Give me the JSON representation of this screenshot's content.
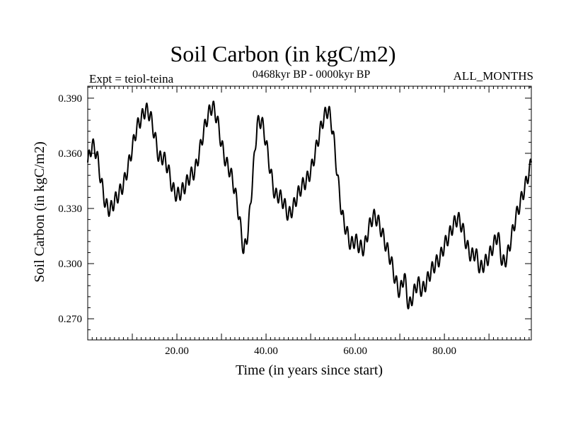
{
  "chart_data": {
    "type": "line",
    "title": "Soil Carbon (in kgC/m2)",
    "expt_label": "Expt = teiol-teina",
    "period_label": "0468kyr BP - 0000kyr BP",
    "months_label": "ALL_MONTHS",
    "xlabel": "Time (in years since start)",
    "ylabel": "Soil Carbon (in kgC/m2)",
    "xlim": [
      0,
      99.5
    ],
    "ylim": [
      0.2585,
      0.3965
    ],
    "xticks": [
      20,
      40,
      60,
      80
    ],
    "xtick_labels": [
      "20.00",
      "40.00",
      "60.00",
      "80.00"
    ],
    "yticks": [
      0.27,
      0.3,
      0.33,
      0.36,
      0.39
    ],
    "ytick_labels": [
      "0.270",
      "0.300",
      "0.330",
      "0.360",
      "0.390"
    ],
    "series": [
      {
        "name": "Soil Carbon",
        "color": "#000000",
        "seasonal_amplitude": 0.004,
        "x": [
          0,
          1,
          2,
          3,
          4,
          5,
          6,
          7,
          8,
          9,
          10,
          11,
          12,
          13,
          14,
          15,
          16,
          17,
          18,
          19,
          20,
          21,
          22,
          23,
          24,
          25,
          26,
          27,
          28,
          29,
          30,
          31,
          32,
          33,
          34,
          35,
          36,
          37,
          38,
          39,
          40,
          41,
          42,
          43,
          44,
          45,
          46,
          47,
          48,
          49,
          50,
          51,
          52,
          53,
          54,
          55,
          56,
          57,
          58,
          59,
          60,
          61,
          62,
          63,
          64,
          65,
          66,
          67,
          68,
          69,
          70,
          71,
          72,
          73,
          74,
          75,
          76,
          77,
          78,
          79,
          80,
          81,
          82,
          83,
          84,
          85,
          86,
          87,
          88,
          89,
          90,
          91,
          92,
          93,
          94,
          95,
          96,
          97,
          98,
          99,
          99.5
        ],
        "values": [
          0.355,
          0.365,
          0.36,
          0.345,
          0.332,
          0.329,
          0.334,
          0.338,
          0.343,
          0.352,
          0.363,
          0.374,
          0.379,
          0.384,
          0.381,
          0.37,
          0.357,
          0.358,
          0.352,
          0.341,
          0.337,
          0.339,
          0.343,
          0.348,
          0.35,
          0.36,
          0.372,
          0.381,
          0.386,
          0.379,
          0.365,
          0.355,
          0.35,
          0.34,
          0.325,
          0.306,
          0.318,
          0.347,
          0.376,
          0.378,
          0.366,
          0.35,
          0.337,
          0.337,
          0.333,
          0.326,
          0.33,
          0.337,
          0.342,
          0.345,
          0.35,
          0.36,
          0.371,
          0.38,
          0.384,
          0.372,
          0.348,
          0.327,
          0.318,
          0.31,
          0.313,
          0.309,
          0.308,
          0.319,
          0.326,
          0.324,
          0.317,
          0.309,
          0.302,
          0.291,
          0.284,
          0.294,
          0.276,
          0.283,
          0.29,
          0.285,
          0.29,
          0.296,
          0.3,
          0.303,
          0.31,
          0.315,
          0.321,
          0.325,
          0.32,
          0.31,
          0.304,
          0.306,
          0.297,
          0.3,
          0.304,
          0.31,
          0.316,
          0.3,
          0.303,
          0.314,
          0.325,
          0.333,
          0.341,
          0.35,
          0.355
        ]
      }
    ]
  }
}
